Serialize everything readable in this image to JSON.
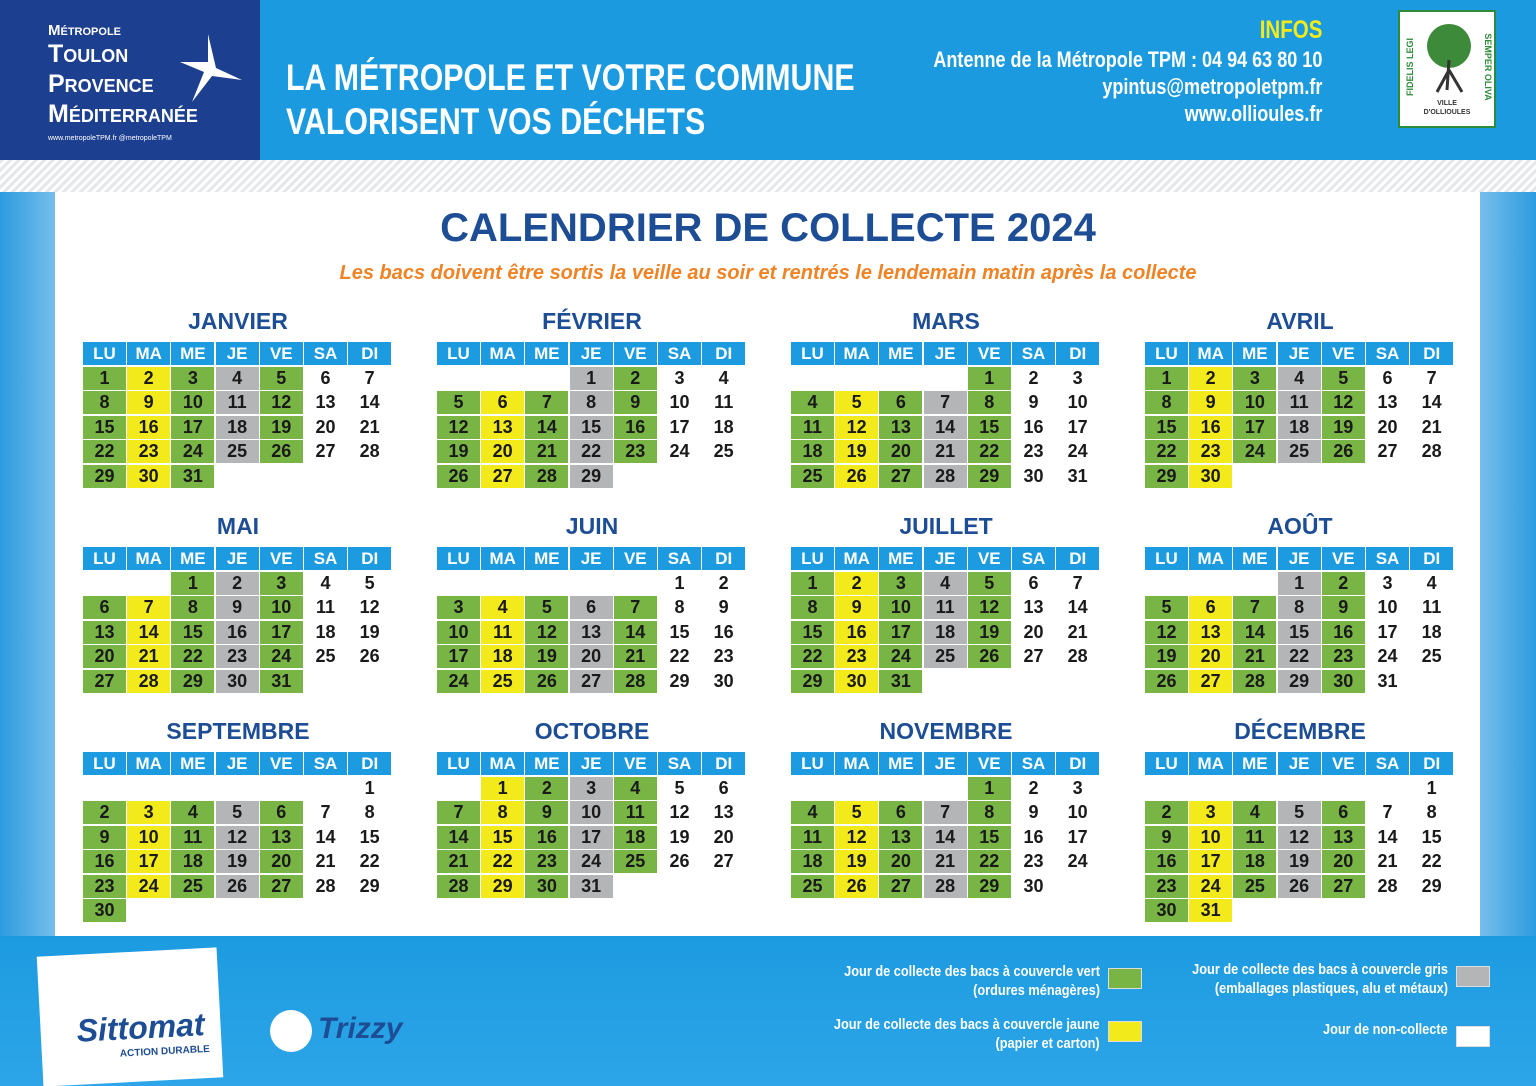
{
  "header": {
    "brand": {
      "line1": "Métropole",
      "line2": "Toulon",
      "line3": "Provence",
      "line4": "Méditerranée",
      "web": "www.metropoleTPM.fr  @metropoleTPM"
    },
    "headline": [
      "LA MÉTROPOLE ET VOTRE COMMUNE",
      "VALORISENT VOS DÉCHETS"
    ],
    "infos": {
      "title": "INFOS",
      "lines": [
        "Antenne de la Métropole TPM : 04 94 63 80 10",
        "ypintus@metropoletpm.fr",
        "www.ollioules.fr"
      ]
    },
    "crest": {
      "left": "FIDELIS LEGI",
      "right": "SEMPER OLIVA",
      "bottom1": "VILLE",
      "bottom2": "D'OLLIOULES"
    }
  },
  "title": "CALENDRIER DE COLLECTE 2024",
  "subtitle": "Les bacs doivent être sortis la veille au soir et rentrés le lendemain matin après la collecte",
  "weekdays": [
    "LU",
    "MA",
    "ME",
    "JE",
    "VE",
    "SA",
    "DI"
  ],
  "weekday_colors": [
    "#78b545",
    "#f3ea1c",
    "#78b545",
    "#b4b5b7",
    "#78b545",
    "#ffffff",
    "#ffffff"
  ],
  "months": [
    {
      "name": "JANVIER",
      "days": [
        1,
        2,
        3,
        4,
        5,
        6,
        7,
        8,
        9,
        10,
        11,
        12,
        13,
        14,
        15,
        16,
        17,
        18,
        19,
        20,
        21,
        22,
        23,
        24,
        25,
        26,
        27,
        28,
        29,
        30,
        31
      ]
    },
    {
      "name": "FÉVRIER",
      "days": [
        null,
        null,
        null,
        1,
        2,
        3,
        4,
        5,
        6,
        7,
        8,
        9,
        10,
        11,
        12,
        13,
        14,
        15,
        16,
        17,
        18,
        19,
        20,
        21,
        22,
        23,
        24,
        25,
        26,
        27,
        28,
        29
      ]
    },
    {
      "name": "MARS",
      "days": [
        null,
        null,
        null,
        null,
        1,
        2,
        3,
        4,
        5,
        6,
        7,
        8,
        9,
        10,
        11,
        12,
        13,
        14,
        15,
        16,
        17,
        18,
        19,
        20,
        21,
        22,
        23,
        24,
        25,
        26,
        27,
        28,
        29,
        30,
        31
      ]
    },
    {
      "name": "AVRIL",
      "days": [
        1,
        2,
        3,
        4,
        5,
        6,
        7,
        8,
        9,
        10,
        11,
        12,
        13,
        14,
        15,
        16,
        17,
        18,
        19,
        20,
        21,
        22,
        23,
        24,
        25,
        26,
        27,
        28,
        29,
        30
      ]
    },
    {
      "name": "MAI",
      "days": [
        null,
        null,
        1,
        2,
        3,
        4,
        5,
        6,
        7,
        8,
        9,
        10,
        11,
        12,
        13,
        14,
        15,
        16,
        17,
        18,
        19,
        20,
        21,
        22,
        23,
        24,
        25,
        26,
        27,
        28,
        29,
        30,
        31
      ]
    },
    {
      "name": "JUIN",
      "days": [
        null,
        null,
        null,
        null,
        null,
        1,
        2,
        3,
        4,
        5,
        6,
        7,
        8,
        9,
        10,
        11,
        12,
        13,
        14,
        15,
        16,
        17,
        18,
        19,
        20,
        21,
        22,
        23,
        24,
        25,
        26,
        27,
        28,
        29,
        30
      ]
    },
    {
      "name": "JUILLET",
      "days": [
        1,
        2,
        3,
        4,
        5,
        6,
        7,
        8,
        9,
        10,
        11,
        12,
        13,
        14,
        15,
        16,
        17,
        18,
        19,
        20,
        21,
        22,
        23,
        24,
        25,
        26,
        27,
        28,
        29,
        30,
        31
      ]
    },
    {
      "name": "AOÛT",
      "days": [
        null,
        null,
        null,
        1,
        2,
        3,
        4,
        5,
        6,
        7,
        8,
        9,
        10,
        11,
        12,
        13,
        14,
        15,
        16,
        17,
        18,
        19,
        20,
        21,
        22,
        23,
        24,
        25,
        26,
        27,
        28,
        29,
        30,
        31
      ]
    },
    {
      "name": "SEPTEMBRE",
      "days": [
        null,
        null,
        null,
        null,
        null,
        null,
        1,
        2,
        3,
        4,
        5,
        6,
        7,
        8,
        9,
        10,
        11,
        12,
        13,
        14,
        15,
        16,
        17,
        18,
        19,
        20,
        21,
        22,
        23,
        24,
        25,
        26,
        27,
        28,
        29,
        30
      ]
    },
    {
      "name": "OCTOBRE",
      "days": [
        null,
        1,
        2,
        3,
        4,
        5,
        6,
        7,
        8,
        9,
        10,
        11,
        12,
        13,
        14,
        15,
        16,
        17,
        18,
        19,
        20,
        21,
        22,
        23,
        24,
        25,
        26,
        27,
        28,
        29,
        30,
        31
      ]
    },
    {
      "name": "NOVEMBRE",
      "days": [
        null,
        null,
        null,
        null,
        1,
        2,
        3,
        4,
        5,
        6,
        7,
        8,
        9,
        10,
        11,
        12,
        13,
        14,
        15,
        16,
        17,
        18,
        19,
        20,
        21,
        22,
        23,
        24,
        25,
        26,
        27,
        28,
        29,
        30
      ]
    },
    {
      "name": "DÉCEMBRE",
      "days": [
        null,
        null,
        null,
        null,
        null,
        null,
        1,
        2,
        3,
        4,
        5,
        6,
        7,
        8,
        9,
        10,
        11,
        12,
        13,
        14,
        15,
        16,
        17,
        18,
        19,
        20,
        21,
        22,
        23,
        24,
        25,
        26,
        27,
        28,
        29,
        30,
        31
      ]
    }
  ],
  "legend": [
    {
      "lines": [
        "Jour de collecte des bacs à couvercle vert",
        "(ordures ménagères)"
      ],
      "color": "#78b545"
    },
    {
      "lines": [
        "Jour de collecte des bacs à couvercle gris",
        "(emballages plastiques, alu et métaux)"
      ],
      "color": "#b4b5b7"
    },
    {
      "lines": [
        "Jour de collecte des bacs à couvercle jaune",
        "(papier et carton)"
      ],
      "color": "#f3ea1c"
    },
    {
      "lines": [
        "Jour de non-collecte"
      ],
      "color": "#ffffff"
    }
  ],
  "footer": {
    "sittomat": "Sittomat",
    "sittomat_tag": "ACTION DURABLE",
    "trizzy": "Trizzy"
  }
}
